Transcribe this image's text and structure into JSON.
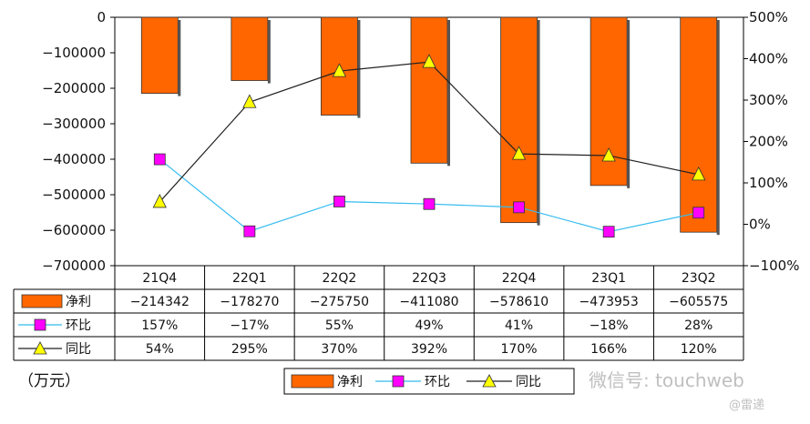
{
  "chart_data": {
    "type": "bar",
    "categories": [
      "21Q4",
      "22Q1",
      "22Q2",
      "22Q3",
      "22Q4",
      "23Q1",
      "23Q2"
    ],
    "series": [
      {
        "name": "净利",
        "type": "bar",
        "axis": "left",
        "values": [
          -214342,
          -178270,
          -275750,
          -411080,
          -578610,
          -473953,
          -605575
        ],
        "color": "#ff6600"
      },
      {
        "name": "环比",
        "type": "line",
        "axis": "right",
        "values": [
          157,
          -17,
          55,
          49,
          41,
          -18,
          28
        ],
        "labels": [
          "157%",
          "-17%",
          "55%",
          "49%",
          "41%",
          "-18%",
          "28%"
        ],
        "color": "#33bbee",
        "marker": "#ff00ff"
      },
      {
        "name": "同比",
        "type": "line",
        "axis": "right",
        "values": [
          54,
          295,
          370,
          392,
          170,
          166,
          120
        ],
        "labels": [
          "54%",
          "295%",
          "370%",
          "392%",
          "170%",
          "166%",
          "120%"
        ],
        "color": "#222222",
        "marker": "#ffff00"
      }
    ],
    "ylim": [
      -700000,
      0
    ],
    "y2lim": [
      -100,
      500
    ],
    "yticks": [
      "0",
      "−100000",
      "−200000",
      "−300000",
      "−400000",
      "−500000",
      "−600000",
      "−700000"
    ],
    "y2ticks": [
      "500%",
      "400%",
      "300%",
      "200%",
      "100%",
      "0%",
      "−100%"
    ],
    "table": {
      "rows": [
        {
          "label": "净利",
          "cells": [
            "−214342",
            "−178270",
            "−275750",
            "−411080",
            "−578610",
            "−473953",
            "−605575"
          ]
        },
        {
          "label": "环比",
          "cells": [
            "157%",
            "−17%",
            "55%",
            "49%",
            "41%",
            "−18%",
            "28%"
          ]
        },
        {
          "label": "同比",
          "cells": [
            "54%",
            "295%",
            "370%",
            "392%",
            "170%",
            "166%",
            "120%"
          ]
        }
      ]
    },
    "legend": [
      "净利",
      "环比",
      "同比"
    ],
    "legend_position": "bottom",
    "grid": false
  },
  "unit_label": "（万元）",
  "watermark": "微信号: touchweb",
  "watermark_secondary": "@雷递"
}
